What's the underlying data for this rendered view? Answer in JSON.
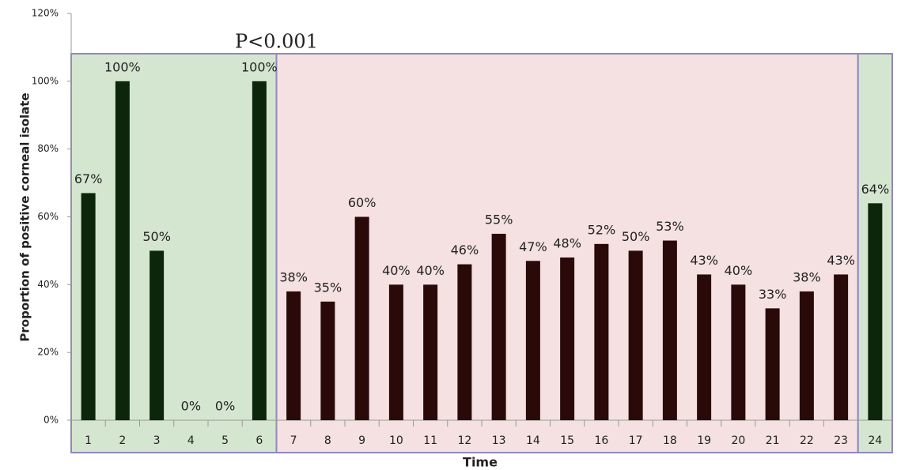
{
  "chart_data": {
    "type": "bar",
    "annotation": "P<0.001",
    "y_label": "Proportion of positive corneal isolate",
    "x_label": "Time",
    "categories": [
      "1",
      "2",
      "3",
      "4",
      "5",
      "6",
      "7",
      "8",
      "9",
      "10",
      "11",
      "12",
      "13",
      "14",
      "15",
      "16",
      "17",
      "18",
      "19",
      "20",
      "21",
      "22",
      "23",
      "24"
    ],
    "values": [
      67,
      100,
      50,
      0,
      0,
      100,
      38,
      35,
      60,
      40,
      40,
      46,
      55,
      47,
      48,
      52,
      50,
      53,
      43,
      40,
      33,
      38,
      43,
      64
    ],
    "value_labels": [
      "67%",
      "100%",
      "50%",
      "0%",
      "0%",
      "100%",
      "38%",
      "35%",
      "60%",
      "40%",
      "40%",
      "46%",
      "55%",
      "47%",
      "48%",
      "52%",
      "50%",
      "53%",
      "43%",
      "40%",
      "33%",
      "38%",
      "43%",
      "64%"
    ],
    "regions": [
      {
        "start": "1",
        "end": "6",
        "fill": "#d5e6d0",
        "bar_color": "#0c260c"
      },
      {
        "start": "7",
        "end": "23",
        "fill": "#f5e1e1",
        "bar_color": "#2a0909"
      },
      {
        "start": "24",
        "end": "24",
        "fill": "#d5e6d0",
        "bar_color": "#0c260c"
      }
    ],
    "ylim": [
      0,
      120
    ],
    "yticks": [
      {
        "value": 0,
        "label": "0%"
      },
      {
        "value": 20,
        "label": "20%"
      },
      {
        "value": 40,
        "label": "40%"
      },
      {
        "value": 60,
        "label": "60%"
      },
      {
        "value": 80,
        "label": "80%"
      },
      {
        "value": 100,
        "label": "100%"
      },
      {
        "value": 120,
        "label": "120%"
      }
    ]
  }
}
